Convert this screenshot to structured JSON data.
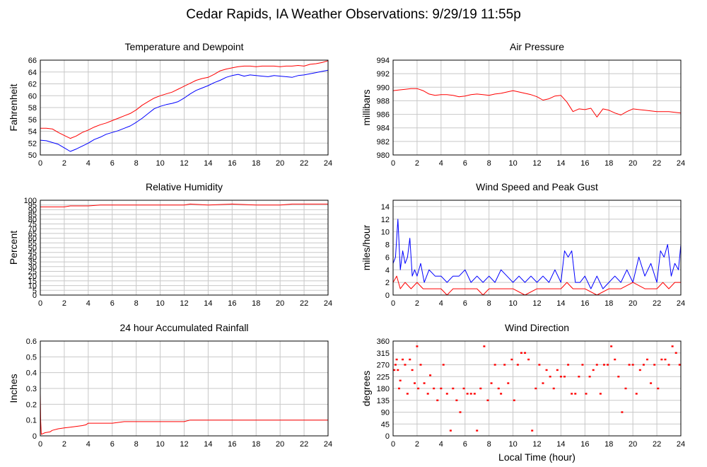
{
  "title": "Cedar Rapids, IA Weather Observations: 9/29/19 11:55p",
  "chart_data": [
    {
      "id": "temperature",
      "type": "line",
      "title": "Temperature and Dewpoint",
      "ylabel": "Fahrenheit",
      "xlabel": "",
      "xlim": [
        0,
        24
      ],
      "ylim": [
        50,
        66
      ],
      "xticks": [
        0,
        2,
        4,
        6,
        8,
        10,
        12,
        14,
        16,
        18,
        20,
        22,
        24
      ],
      "yticks": [
        50,
        52,
        54,
        56,
        58,
        60,
        62,
        64,
        66
      ],
      "grid": true,
      "series": [
        {
          "color": "#ff0000",
          "x": [
            0,
            0.5,
            1,
            1.5,
            2,
            2.5,
            3,
            3.5,
            4,
            4.5,
            5,
            5.5,
            6,
            6.5,
            7,
            7.5,
            8,
            8.5,
            9,
            9.5,
            10,
            10.5,
            11,
            11.5,
            12,
            12.5,
            13,
            13.5,
            14,
            14.5,
            15,
            15.5,
            16,
            16.5,
            17,
            17.5,
            18,
            18.5,
            19,
            19.5,
            20,
            20.5,
            21,
            21.5,
            22,
            22.5,
            23,
            23.5,
            24
          ],
          "y": [
            54.5,
            54.5,
            54.4,
            53.8,
            53.3,
            52.8,
            53.2,
            53.8,
            54.2,
            54.7,
            55.1,
            55.4,
            55.8,
            56.2,
            56.6,
            57.0,
            57.6,
            58.4,
            59.0,
            59.6,
            60.0,
            60.3,
            60.6,
            61.1,
            61.6,
            62.1,
            62.6,
            62.9,
            63.1,
            63.6,
            64.2,
            64.5,
            64.7,
            64.9,
            65.0,
            65.0,
            64.9,
            65.0,
            65.0,
            65.0,
            64.9,
            65.0,
            65.0,
            65.1,
            65.0,
            65.3,
            65.4,
            65.6,
            65.9
          ]
        },
        {
          "color": "#0000ff",
          "x": [
            0,
            0.5,
            1,
            1.5,
            2,
            2.5,
            3,
            3.5,
            4,
            4.5,
            5,
            5.5,
            6,
            6.5,
            7,
            7.5,
            8,
            8.5,
            9,
            9.5,
            10,
            10.5,
            11,
            11.5,
            12,
            12.5,
            13,
            13.5,
            14,
            14.5,
            15,
            15.5,
            16,
            16.5,
            17,
            17.5,
            18,
            18.5,
            19,
            19.5,
            20,
            20.5,
            21,
            21.5,
            22,
            22.5,
            23,
            23.5,
            24
          ],
          "y": [
            52.5,
            52.4,
            52.1,
            51.8,
            51.2,
            50.6,
            51.0,
            51.5,
            52.0,
            52.6,
            53.0,
            53.5,
            53.8,
            54.1,
            54.5,
            54.9,
            55.5,
            56.2,
            57.0,
            57.8,
            58.2,
            58.5,
            58.7,
            59.0,
            59.6,
            60.3,
            60.9,
            61.3,
            61.7,
            62.2,
            62.6,
            63.1,
            63.4,
            63.6,
            63.3,
            63.5,
            63.4,
            63.3,
            63.2,
            63.4,
            63.3,
            63.2,
            63.1,
            63.4,
            63.5,
            63.7,
            63.9,
            64.1,
            64.3
          ]
        }
      ]
    },
    {
      "id": "pressure",
      "type": "line",
      "title": "Air Pressure",
      "ylabel": "millibars",
      "xlabel": "",
      "xlim": [
        0,
        24
      ],
      "ylim": [
        980,
        994
      ],
      "xticks": [
        0,
        2,
        4,
        6,
        8,
        10,
        12,
        14,
        16,
        18,
        20,
        22,
        24
      ],
      "yticks": [
        980,
        982,
        984,
        986,
        988,
        990,
        992,
        994
      ],
      "grid": true,
      "series": [
        {
          "color": "#ff0000",
          "x": [
            0,
            0.5,
            1,
            1.5,
            2,
            2.5,
            3,
            3.5,
            4,
            4.5,
            5,
            5.5,
            6,
            6.5,
            7,
            7.5,
            8,
            8.5,
            9,
            9.5,
            10,
            10.5,
            11,
            11.5,
            12,
            12.5,
            13,
            13.5,
            14,
            14.5,
            15,
            15.5,
            16,
            16.5,
            17,
            17.5,
            18,
            18.5,
            19,
            19.5,
            20,
            20.5,
            21,
            21.5,
            22,
            22.5,
            23,
            23.5,
            24
          ],
          "y": [
            989.5,
            989.6,
            989.7,
            989.8,
            989.8,
            989.5,
            989.0,
            988.8,
            988.9,
            988.9,
            988.8,
            988.6,
            988.7,
            988.9,
            989.0,
            988.9,
            988.8,
            989.0,
            989.1,
            989.3,
            989.5,
            989.3,
            989.1,
            988.9,
            988.6,
            988.1,
            988.3,
            988.7,
            988.8,
            987.8,
            986.4,
            986.8,
            986.7,
            986.9,
            985.6,
            986.8,
            986.6,
            986.2,
            985.9,
            986.4,
            986.8,
            986.7,
            986.6,
            986.5,
            986.4,
            986.4,
            986.4,
            986.3,
            986.2
          ]
        }
      ]
    },
    {
      "id": "humidity",
      "type": "line",
      "title": "Relative Humidity",
      "ylabel": "Percent",
      "xlabel": "",
      "xlim": [
        0,
        24
      ],
      "ylim": [
        0,
        100
      ],
      "xticks": [
        0,
        2,
        4,
        6,
        8,
        10,
        12,
        14,
        16,
        18,
        20,
        22,
        24
      ],
      "yticks": [
        0,
        5,
        10,
        15,
        20,
        25,
        30,
        35,
        40,
        45,
        50,
        55,
        60,
        65,
        70,
        75,
        80,
        85,
        90,
        95,
        100
      ],
      "grid": true,
      "series": [
        {
          "color": "#ff0000",
          "x": [
            0,
            2,
            2.5,
            4,
            5,
            6,
            8,
            10,
            12,
            12.5,
            14,
            16,
            18,
            20,
            21,
            22,
            24
          ],
          "y": [
            93,
            93,
            94,
            94,
            95,
            95,
            95,
            95,
            95,
            96,
            95,
            96,
            95,
            95,
            96,
            96,
            96
          ]
        }
      ]
    },
    {
      "id": "wind",
      "type": "line",
      "title": "Wind Speed and Peak Gust",
      "ylabel": "miles/hour",
      "xlabel": "",
      "xlim": [
        0,
        24
      ],
      "ylim": [
        0,
        15
      ],
      "xticks": [
        0,
        2,
        4,
        6,
        8,
        10,
        12,
        14,
        16,
        18,
        20,
        22,
        24
      ],
      "yticks": [
        0,
        2,
        4,
        6,
        8,
        10,
        12,
        14
      ],
      "grid": true,
      "series": [
        {
          "color": "#0000ff",
          "x": [
            0,
            0.2,
            0.4,
            0.6,
            0.8,
            1,
            1.2,
            1.4,
            1.6,
            1.8,
            2,
            2.3,
            2.6,
            3,
            3.5,
            4,
            4.5,
            5,
            5.5,
            6,
            6.5,
            7,
            7.5,
            8,
            8.5,
            9,
            9.5,
            10,
            10.5,
            11,
            11.5,
            12,
            12.5,
            13,
            13.5,
            14,
            14.3,
            14.6,
            14.9,
            15.2,
            15.6,
            16,
            16.5,
            17,
            17.5,
            18,
            18.5,
            19,
            19.5,
            20,
            20.5,
            21,
            21.5,
            22,
            22.3,
            22.6,
            22.9,
            23.2,
            23.5,
            23.8,
            24
          ],
          "y": [
            5,
            6,
            12,
            4,
            7,
            5,
            6,
            9,
            3,
            4,
            3,
            5,
            2,
            4,
            3,
            3,
            2,
            3,
            3,
            4,
            2,
            3,
            2,
            3,
            2,
            4,
            3,
            2,
            3,
            2,
            3,
            2,
            3,
            2,
            4,
            2,
            7,
            6,
            7,
            2,
            2,
            3,
            1,
            3,
            1,
            2,
            3,
            2,
            4,
            2,
            6,
            3,
            5,
            2,
            7,
            6,
            8,
            3,
            5,
            4,
            8
          ]
        },
        {
          "color": "#ff0000",
          "x": [
            0,
            0.3,
            0.6,
            1,
            1.5,
            2,
            2.5,
            3,
            4,
            4.5,
            5,
            6,
            7,
            7.5,
            8,
            9,
            10,
            11,
            12,
            13,
            14,
            14.5,
            15,
            16,
            17,
            18,
            19,
            20,
            21,
            22,
            22.5,
            23,
            23.5,
            24
          ],
          "y": [
            2,
            3,
            1,
            2,
            1,
            2,
            1,
            1,
            1,
            0,
            1,
            1,
            1,
            0,
            1,
            1,
            1,
            0,
            1,
            1,
            1,
            2,
            1,
            1,
            0,
            1,
            1,
            2,
            1,
            1,
            2,
            1,
            2,
            2
          ]
        }
      ]
    },
    {
      "id": "rainfall",
      "type": "line",
      "title": "24 hour Accumulated Rainfall",
      "ylabel": "Inches",
      "xlabel": "",
      "xlim": [
        0,
        24
      ],
      "ylim": [
        0,
        0.6
      ],
      "xticks": [
        0,
        2,
        4,
        6,
        8,
        10,
        12,
        14,
        16,
        18,
        20,
        22,
        24
      ],
      "yticks": [
        0,
        0.1,
        0.2,
        0.3,
        0.4,
        0.5,
        0.6
      ],
      "grid": true,
      "series": [
        {
          "color": "#ff0000",
          "x": [
            0,
            0.03,
            0.08,
            0.4,
            0.8,
            1.0,
            1.5,
            2.0,
            2.5,
            3.0,
            3.5,
            3.8,
            4.0,
            5.0,
            6.0,
            7.0,
            8.0,
            10,
            12,
            12.5,
            14,
            16,
            18,
            20,
            22,
            24
          ],
          "y": [
            0.27,
            0.1,
            0.01,
            0.02,
            0.025,
            0.035,
            0.045,
            0.05,
            0.055,
            0.06,
            0.065,
            0.07,
            0.08,
            0.08,
            0.08,
            0.09,
            0.09,
            0.09,
            0.09,
            0.1,
            0.1,
            0.1,
            0.1,
            0.1,
            0.1,
            0.1
          ]
        }
      ]
    },
    {
      "id": "direction",
      "type": "scatter",
      "title": "Wind Direction",
      "ylabel": "degrees",
      "xlabel": "Local Time (hour)",
      "xlim": [
        0,
        24
      ],
      "ylim": [
        0,
        360
      ],
      "xticks": [
        0,
        2,
        4,
        6,
        8,
        10,
        12,
        14,
        16,
        18,
        20,
        22,
        24
      ],
      "yticks": [
        0,
        45,
        90,
        135,
        180,
        225,
        270,
        315,
        360
      ],
      "grid": true,
      "series": [
        {
          "color": "#ff0000",
          "x": [
            0.1,
            0.2,
            0.3,
            0.4,
            0.5,
            0.6,
            0.8,
            1.0,
            1.2,
            1.4,
            1.6,
            1.8,
            2.0,
            2.1,
            2.3,
            2.6,
            2.9,
            3.1,
            3.4,
            3.7,
            4.0,
            4.2,
            4.5,
            4.8,
            5.0,
            5.3,
            5.6,
            5.9,
            6.2,
            6.5,
            6.8,
            7.0,
            7.3,
            7.6,
            7.9,
            8.2,
            8.5,
            8.8,
            9.0,
            9.3,
            9.6,
            9.9,
            10.1,
            10.4,
            10.7,
            11.0,
            11.3,
            11.6,
            11.9,
            12.2,
            12.5,
            12.8,
            13.1,
            13.4,
            13.7,
            14.0,
            14.3,
            14.6,
            14.9,
            15.2,
            15.5,
            15.8,
            16.1,
            16.4,
            16.7,
            17.0,
            17.3,
            17.6,
            17.9,
            18.2,
            18.5,
            18.8,
            19.1,
            19.4,
            19.7,
            20.0,
            20.3,
            20.6,
            20.9,
            21.2,
            21.5,
            21.8,
            22.1,
            22.4,
            22.7,
            23.0,
            23.3,
            23.6,
            23.9
          ],
          "y": [
            250,
            270,
            290,
            250,
            180,
            210,
            290,
            270,
            160,
            290,
            250,
            200,
            340,
            180,
            270,
            200,
            160,
            230,
            180,
            135,
            180,
            270,
            160,
            20,
            180,
            135,
            90,
            180,
            160,
            160,
            160,
            20,
            180,
            340,
            135,
            200,
            270,
            180,
            160,
            270,
            200,
            290,
            135,
            270,
            315,
            315,
            290,
            20,
            180,
            270,
            200,
            250,
            225,
            180,
            250,
            225,
            225,
            270,
            160,
            160,
            225,
            270,
            160,
            225,
            250,
            270,
            160,
            270,
            270,
            340,
            290,
            225,
            90,
            180,
            270,
            270,
            160,
            250,
            270,
            290,
            200,
            270,
            180,
            290,
            290,
            270,
            340,
            315,
            270
          ]
        }
      ]
    }
  ]
}
